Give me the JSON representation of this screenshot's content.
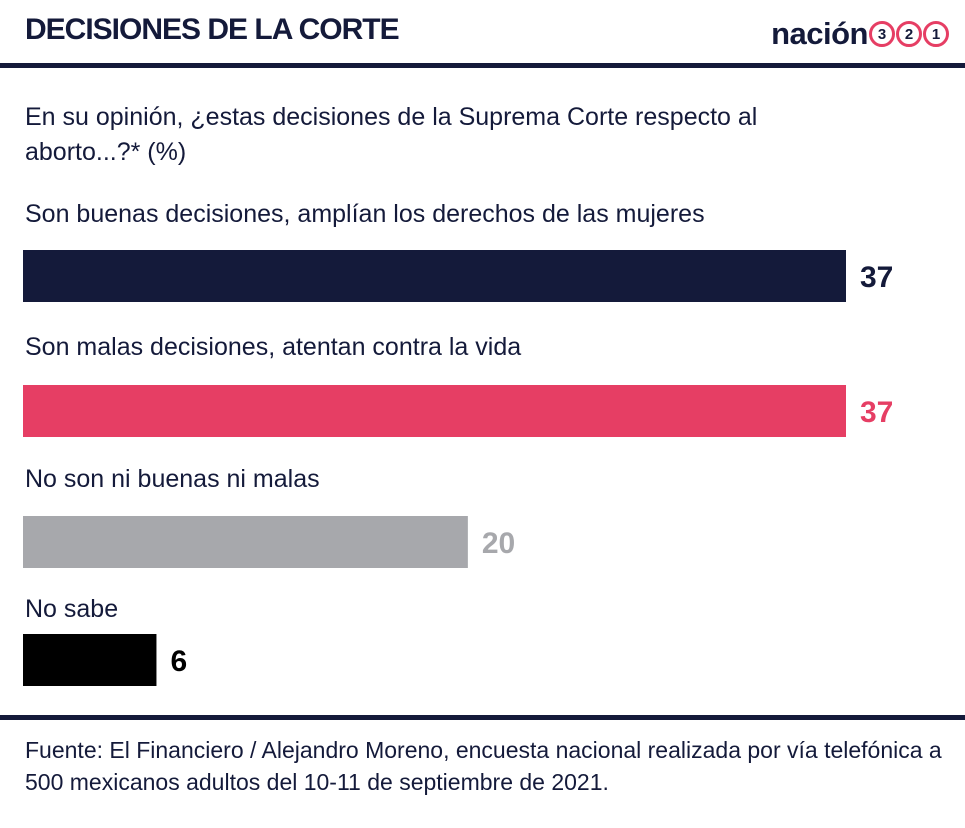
{
  "header": {
    "title": "DECISIONES DE LA CORTE",
    "brand": {
      "name": "nación",
      "digits": [
        "3",
        "2",
        "1"
      ]
    }
  },
  "question": "En su opinión, ¿estas decisiones de la Suprema Corte respecto al aborto...?* (%)",
  "source": "Fuente: El Financiero / Alejandro Moreno, encuesta nacional realizada por vía telefónica a 500 mexicanos adultos del 10-11 de septiembre de 2021.",
  "colors": {
    "navy": "#141a3a",
    "pink": "#e63e64",
    "gray": "#a7a8ac",
    "black": "#000000"
  },
  "chart_data": {
    "type": "bar",
    "orientation": "horizontal",
    "unit": "%",
    "categories": [
      "Son buenas decisiones, amplían los derechos de las mujeres",
      "Son malas decisiones, atentan contra la vida",
      "No son ni buenas ni malas",
      "No sabe"
    ],
    "values": [
      37,
      37,
      20,
      6
    ],
    "value_labels": [
      "37",
      "37",
      "20",
      "6"
    ],
    "bar_colors": [
      "#141a3a",
      "#e63e64",
      "#a7a8ac",
      "#000000"
    ],
    "label_colors": [
      "#141a3a",
      "#e63e64",
      "#a7a8ac",
      "#000000"
    ],
    "xlim": [
      0,
      37
    ],
    "axes": false,
    "grid": false,
    "legend": "none"
  }
}
